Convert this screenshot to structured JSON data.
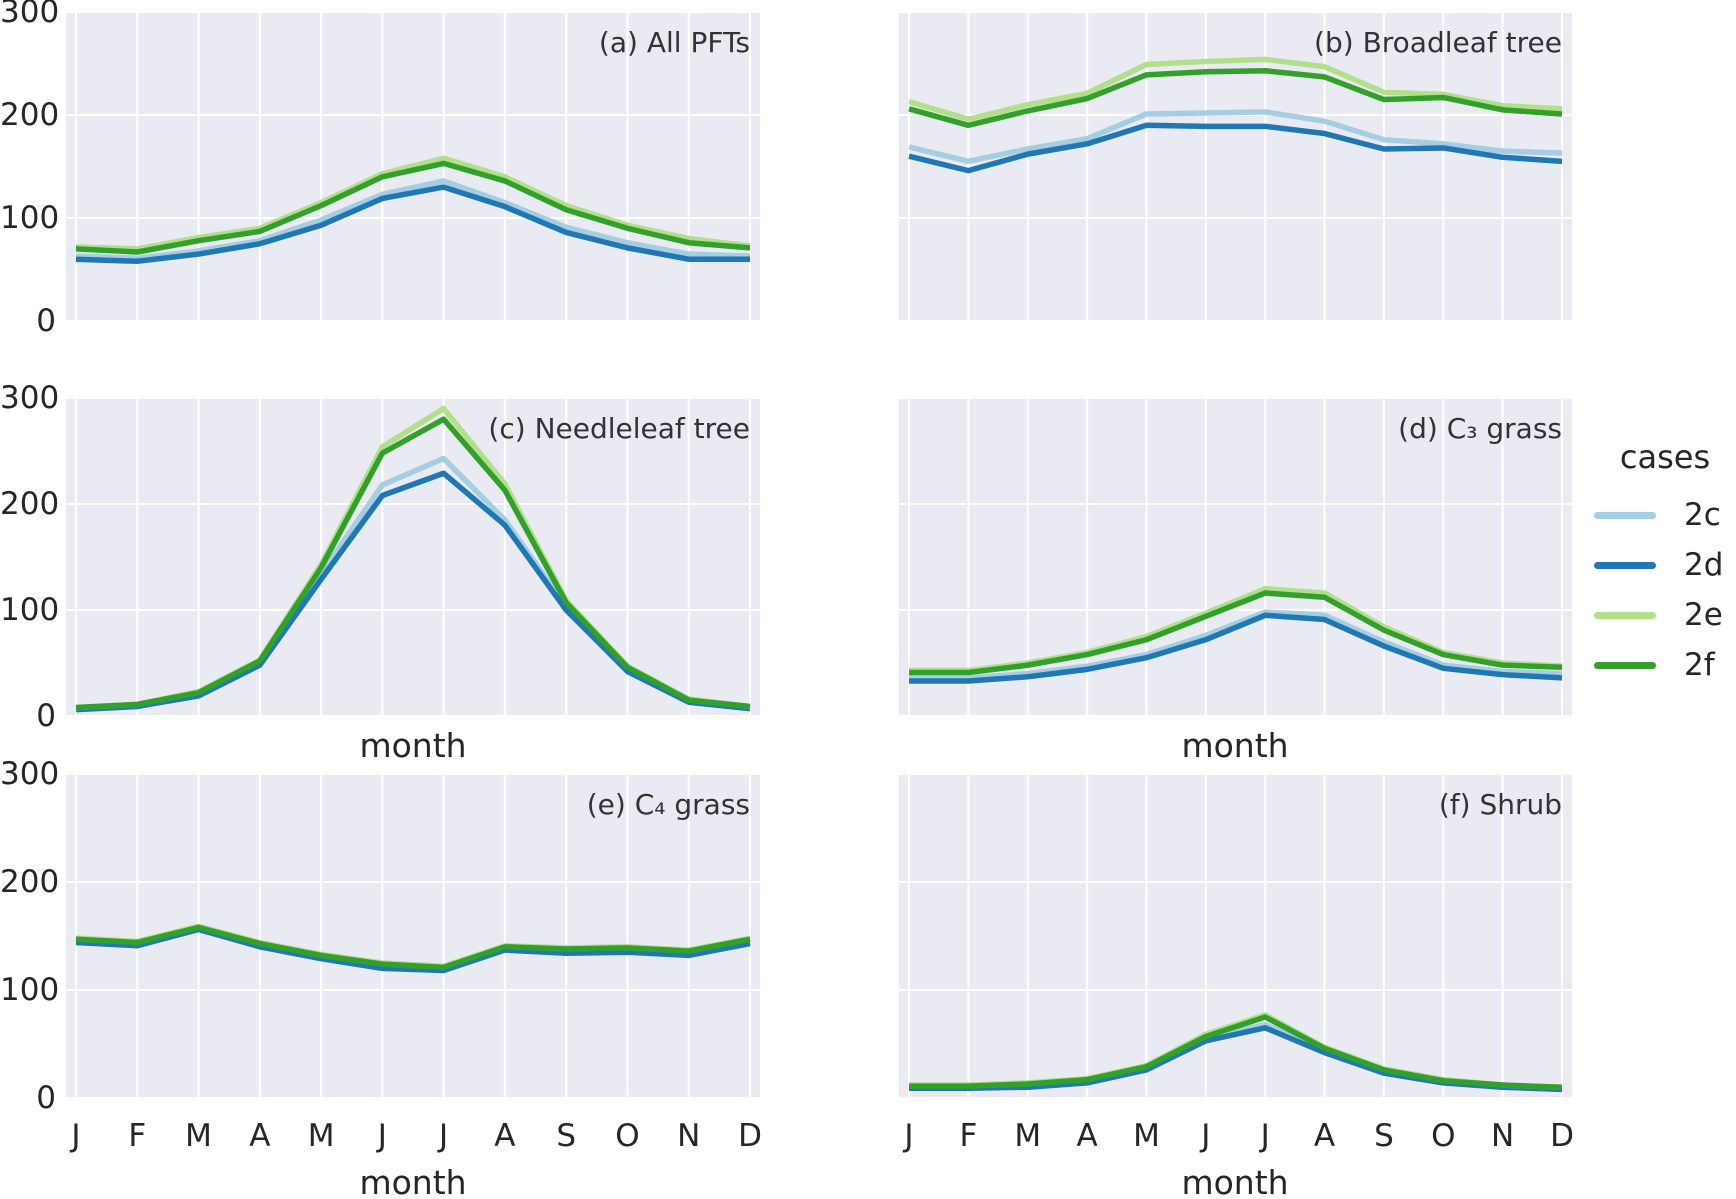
{
  "figure": {
    "background": "#ffffff",
    "panel_background": "#eaeaf2",
    "gridline_color": "#ffffff",
    "text_color": "#262626"
  },
  "legend": {
    "title": "cases",
    "entries": [
      {
        "label": "2c",
        "color": "#a6cee3"
      },
      {
        "label": "2d",
        "color": "#1f78b4"
      },
      {
        "label": "2e",
        "color": "#b2df8a"
      },
      {
        "label": "2f",
        "color": "#33a02c"
      }
    ]
  },
  "axis": {
    "xlabel": "month",
    "months": [
      "J",
      "F",
      "M",
      "A",
      "M",
      "J",
      "J",
      "A",
      "S",
      "O",
      "N",
      "D"
    ],
    "yticks": [
      "300",
      "200",
      "100",
      "0"
    ]
  },
  "chart_data": [
    {
      "type": "line",
      "title": "(a) All PFTs",
      "x": [
        "J",
        "F",
        "M",
        "A",
        "M",
        "J",
        "J",
        "A",
        "S",
        "O",
        "N",
        "D"
      ],
      "ylim": [
        0,
        300
      ],
      "grid": true,
      "series": [
        {
          "name": "2c",
          "color": "#a6cee3",
          "values": [
            63,
            61,
            68,
            78,
            98,
            123,
            136,
            115,
            91,
            76,
            65,
            63
          ]
        },
        {
          "name": "2d",
          "color": "#1f78b4",
          "values": [
            60,
            58,
            65,
            75,
            93,
            119,
            130,
            111,
            86,
            71,
            60,
            60
          ]
        },
        {
          "name": "2e",
          "color": "#b2df8a",
          "values": [
            72,
            70,
            81,
            90,
            115,
            143,
            158,
            140,
            112,
            93,
            80,
            73
          ]
        },
        {
          "name": "2f",
          "color": "#33a02c",
          "values": [
            70,
            67,
            78,
            87,
            112,
            140,
            153,
            136,
            108,
            90,
            76,
            71
          ]
        }
      ]
    },
    {
      "type": "line",
      "title": "(b) Broadleaf tree",
      "x": [
        "J",
        "F",
        "M",
        "A",
        "M",
        "J",
        "J",
        "A",
        "S",
        "O",
        "N",
        "D"
      ],
      "ylim": [
        0,
        300
      ],
      "grid": true,
      "series": [
        {
          "name": "2c",
          "color": "#a6cee3",
          "values": [
            169,
            155,
            167,
            177,
            201,
            202,
            203,
            194,
            176,
            172,
            165,
            163
          ]
        },
        {
          "name": "2d",
          "color": "#1f78b4",
          "values": [
            160,
            146,
            162,
            172,
            190,
            189,
            189,
            182,
            167,
            168,
            159,
            155
          ]
        },
        {
          "name": "2e",
          "color": "#b2df8a",
          "values": [
            213,
            196,
            210,
            221,
            249,
            252,
            254,
            247,
            222,
            220,
            209,
            206
          ]
        },
        {
          "name": "2f",
          "color": "#33a02c",
          "values": [
            206,
            190,
            204,
            216,
            239,
            242,
            243,
            237,
            215,
            217,
            205,
            201
          ]
        }
      ]
    },
    {
      "type": "line",
      "title": "(c) Needleleaf tree",
      "x": [
        "J",
        "F",
        "M",
        "A",
        "M",
        "J",
        "J",
        "A",
        "S",
        "O",
        "N",
        "D"
      ],
      "ylim": [
        0,
        300
      ],
      "grid": true,
      "series": [
        {
          "name": "2c",
          "color": "#a6cee3",
          "values": [
            7,
            9,
            20,
            49,
            134,
            218,
            243,
            185,
            103,
            44,
            14,
            8
          ]
        },
        {
          "name": "2d",
          "color": "#1f78b4",
          "values": [
            6,
            9,
            19,
            48,
            129,
            208,
            229,
            180,
            100,
            42,
            13,
            7
          ]
        },
        {
          "name": "2e",
          "color": "#b2df8a",
          "values": [
            8,
            11,
            23,
            53,
            143,
            254,
            290,
            219,
            109,
            47,
            16,
            9
          ]
        },
        {
          "name": "2f",
          "color": "#33a02c",
          "values": [
            8,
            11,
            22,
            52,
            140,
            248,
            280,
            213,
            107,
            46,
            15,
            9
          ]
        }
      ]
    },
    {
      "type": "line",
      "title": "(d) C₃ grass",
      "x": [
        "J",
        "F",
        "M",
        "A",
        "M",
        "J",
        "J",
        "A",
        "S",
        "O",
        "N",
        "D"
      ],
      "ylim": [
        0,
        300
      ],
      "grid": true,
      "series": [
        {
          "name": "2c",
          "color": "#a6cee3",
          "values": [
            36,
            36,
            40,
            47,
            58,
            76,
            98,
            95,
            70,
            48,
            42,
            40
          ]
        },
        {
          "name": "2d",
          "color": "#1f78b4",
          "values": [
            33,
            33,
            37,
            44,
            55,
            72,
            95,
            91,
            66,
            45,
            39,
            36
          ]
        },
        {
          "name": "2e",
          "color": "#b2df8a",
          "values": [
            43,
            43,
            50,
            60,
            75,
            97,
            120,
            116,
            84,
            60,
            50,
            47
          ]
        },
        {
          "name": "2f",
          "color": "#33a02c",
          "values": [
            41,
            41,
            48,
            58,
            72,
            94,
            116,
            112,
            81,
            58,
            48,
            46
          ]
        }
      ]
    },
    {
      "type": "line",
      "title": "(e) C₄ grass",
      "x": [
        "J",
        "F",
        "M",
        "A",
        "M",
        "J",
        "J",
        "A",
        "S",
        "O",
        "N",
        "D"
      ],
      "ylim": [
        0,
        300
      ],
      "grid": true,
      "series": [
        {
          "name": "2c",
          "color": "#a6cee3",
          "values": [
            145,
            142,
            157,
            141,
            130,
            121,
            119,
            138,
            135,
            136,
            133,
            144
          ]
        },
        {
          "name": "2d",
          "color": "#1f78b4",
          "values": [
            144,
            141,
            156,
            140,
            129,
            120,
            118,
            137,
            134,
            135,
            132,
            143
          ]
        },
        {
          "name": "2e",
          "color": "#b2df8a",
          "values": [
            148,
            145,
            159,
            144,
            133,
            125,
            122,
            141,
            139,
            140,
            137,
            148
          ]
        },
        {
          "name": "2f",
          "color": "#33a02c",
          "values": [
            147,
            144,
            158,
            143,
            132,
            124,
            121,
            140,
            138,
            139,
            136,
            147
          ]
        }
      ]
    },
    {
      "type": "line",
      "title": "(f) Shrub",
      "x": [
        "J",
        "F",
        "M",
        "A",
        "M",
        "J",
        "J",
        "A",
        "S",
        "O",
        "N",
        "D"
      ],
      "ylim": [
        0,
        300
      ],
      "grid": true,
      "series": [
        {
          "name": "2c",
          "color": "#a6cee3",
          "values": [
            10,
            10,
            11,
            15,
            27,
            55,
            68,
            44,
            24,
            15,
            10,
            8
          ]
        },
        {
          "name": "2d",
          "color": "#1f78b4",
          "values": [
            9,
            9,
            10,
            14,
            26,
            53,
            65,
            42,
            23,
            14,
            10,
            8
          ]
        },
        {
          "name": "2e",
          "color": "#b2df8a",
          "values": [
            12,
            12,
            14,
            18,
            30,
            59,
            77,
            47,
            27,
            17,
            12,
            10
          ]
        },
        {
          "name": "2f",
          "color": "#33a02c",
          "values": [
            11,
            11,
            13,
            17,
            29,
            57,
            75,
            46,
            26,
            16,
            12,
            10
          ]
        }
      ]
    }
  ]
}
